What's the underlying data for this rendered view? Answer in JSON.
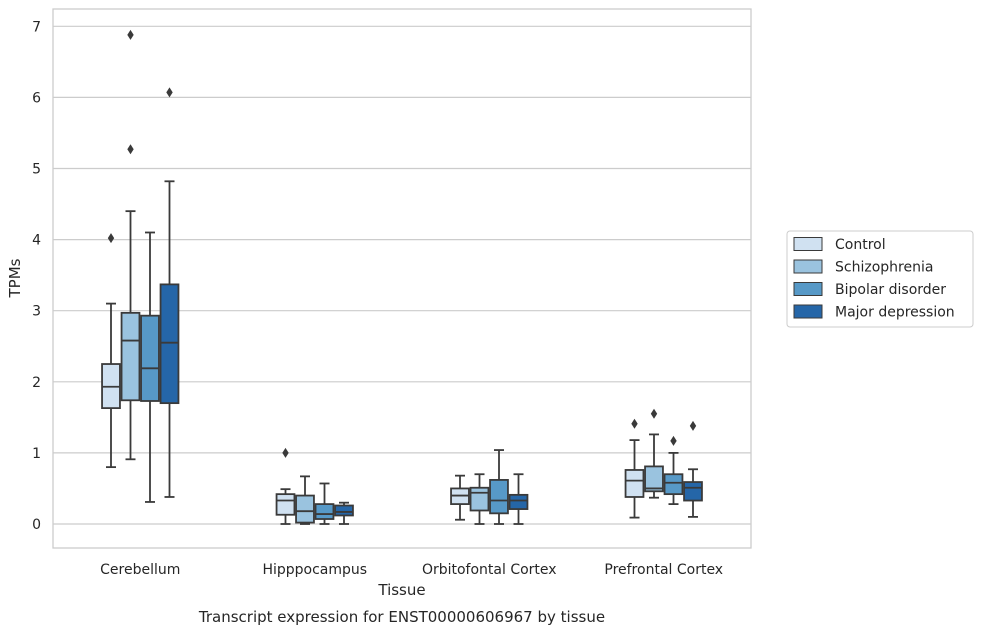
{
  "caption": "Transcript expression for ENST00000606967 by tissue",
  "chart_data": {
    "type": "box",
    "xlabel": "Tissue",
    "ylabel": "TPMs",
    "ylim": [
      -0.33,
      7.2
    ],
    "yticks": [
      0,
      1,
      2,
      3,
      4,
      5,
      6,
      7
    ],
    "grid": "horizontal",
    "legend_position": "right",
    "categories": [
      "Cerebellum",
      "Hipppocampus",
      "Orbitofontal Cortex",
      "Prefrontal Cortex"
    ],
    "series": [
      {
        "name": "Control",
        "color": "#d0e1f1",
        "boxes": [
          {
            "whisker_low": 0.8,
            "q1": 1.63,
            "median": 1.93,
            "q3": 2.25,
            "whisker_high": 3.1,
            "outliers": [
              4.02
            ]
          },
          {
            "whisker_low": 0.0,
            "q1": 0.13,
            "median": 0.33,
            "q3": 0.42,
            "whisker_high": 0.49,
            "outliers": [
              1.0
            ]
          },
          {
            "whisker_low": 0.06,
            "q1": 0.28,
            "median": 0.4,
            "q3": 0.5,
            "whisker_high": 0.68,
            "outliers": []
          },
          {
            "whisker_low": 0.09,
            "q1": 0.38,
            "median": 0.61,
            "q3": 0.76,
            "whisker_high": 1.18,
            "outliers": [
              1.41
            ]
          }
        ]
      },
      {
        "name": "Schizophrenia",
        "color": "#9ac3df",
        "boxes": [
          {
            "whisker_low": 0.91,
            "q1": 1.74,
            "median": 2.58,
            "q3": 2.97,
            "whisker_high": 4.4,
            "outliers": [
              5.27,
              6.88
            ]
          },
          {
            "whisker_low": 0.0,
            "q1": 0.02,
            "median": 0.18,
            "q3": 0.4,
            "whisker_high": 0.67,
            "outliers": []
          },
          {
            "whisker_low": 0.0,
            "q1": 0.19,
            "median": 0.44,
            "q3": 0.51,
            "whisker_high": 0.7,
            "outliers": []
          },
          {
            "whisker_low": 0.37,
            "q1": 0.46,
            "median": 0.5,
            "q3": 0.81,
            "whisker_high": 1.26,
            "outliers": [
              1.55
            ]
          }
        ]
      },
      {
        "name": "Bipolar disorder",
        "color": "#5799c7",
        "boxes": [
          {
            "whisker_low": 0.31,
            "q1": 1.73,
            "median": 2.19,
            "q3": 2.93,
            "whisker_high": 4.1,
            "outliers": []
          },
          {
            "whisker_low": 0.0,
            "q1": 0.07,
            "median": 0.14,
            "q3": 0.28,
            "whisker_high": 0.57,
            "outliers": []
          },
          {
            "whisker_low": 0.0,
            "q1": 0.15,
            "median": 0.33,
            "q3": 0.62,
            "whisker_high": 1.04,
            "outliers": []
          },
          {
            "whisker_low": 0.28,
            "q1": 0.42,
            "median": 0.58,
            "q3": 0.7,
            "whisker_high": 1.0,
            "outliers": [
              1.17
            ]
          }
        ]
      },
      {
        "name": "Major depression",
        "color": "#2566a8",
        "boxes": [
          {
            "whisker_low": 0.38,
            "q1": 1.7,
            "median": 2.55,
            "q3": 3.37,
            "whisker_high": 4.82,
            "outliers": [
              6.07
            ]
          },
          {
            "whisker_low": 0.0,
            "q1": 0.12,
            "median": 0.17,
            "q3": 0.26,
            "whisker_high": 0.3,
            "outliers": []
          },
          {
            "whisker_low": 0.0,
            "q1": 0.21,
            "median": 0.33,
            "q3": 0.41,
            "whisker_high": 0.7,
            "outliers": []
          },
          {
            "whisker_low": 0.1,
            "q1": 0.33,
            "median": 0.51,
            "q3": 0.59,
            "whisker_high": 0.77,
            "outliers": [
              1.38
            ]
          }
        ]
      }
    ]
  }
}
